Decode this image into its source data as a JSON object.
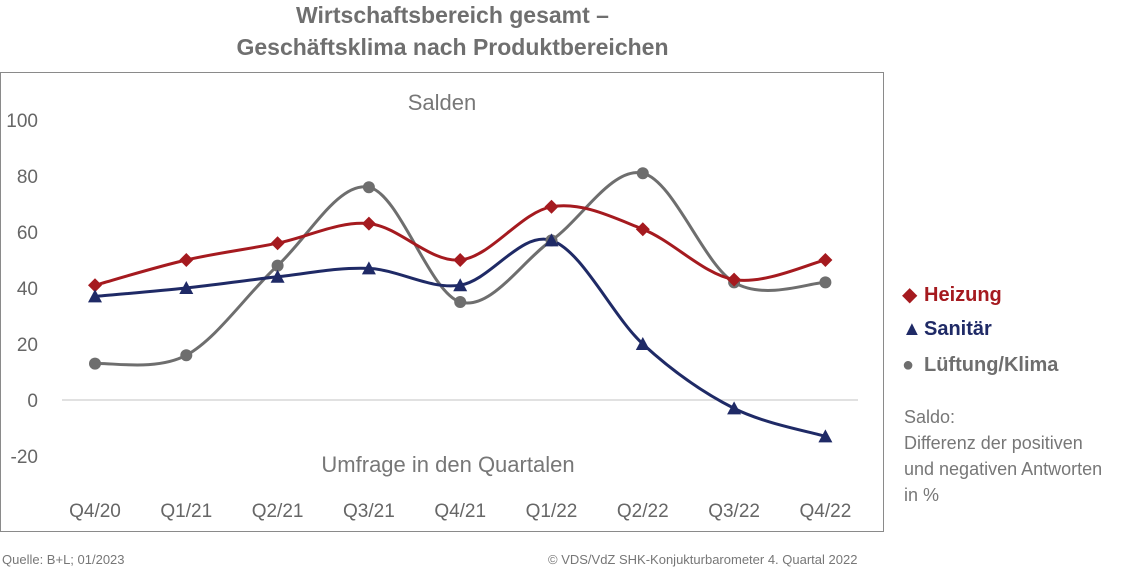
{
  "title_line1": "Wirtschaftsbereich gesamt –",
  "title_line2": "Geschäftsklima nach Produktbereichen",
  "chart_data": {
    "type": "line",
    "title": "Wirtschaftsbereich gesamt – Geschäftsklima nach Produktbereichen",
    "ylabel": "Salden",
    "xlabel": "Umfrage in den Quartalen",
    "categories": [
      "Q4/20",
      "Q1/21",
      "Q2/21",
      "Q3/21",
      "Q4/21",
      "Q1/22",
      "Q2/22",
      "Q3/22",
      "Q4/22"
    ],
    "ylim": [
      -20,
      100
    ],
    "yticks": [
      "100",
      "80",
      "60",
      "40",
      "20",
      "0",
      "-20"
    ],
    "grid": false,
    "legend_position": "right",
    "series": [
      {
        "name": "Heizung",
        "color": "#a51a1f",
        "marker": "diamond",
        "values": [
          41,
          50,
          56,
          63,
          50,
          69,
          61,
          43,
          50
        ]
      },
      {
        "name": "Sanitär",
        "color": "#1f2a66",
        "marker": "triangle",
        "values": [
          37,
          40,
          44,
          47,
          41,
          57,
          20,
          -3,
          -13
        ]
      },
      {
        "name": "Lüftung/Klima",
        "color": "#6e6e6e",
        "marker": "circle",
        "values": [
          13,
          16,
          48,
          76,
          35,
          57,
          81,
          42,
          42
        ]
      }
    ]
  },
  "legend": [
    {
      "symbol": "◆",
      "label": "Heizung",
      "color": "#a51a1f"
    },
    {
      "symbol": "▲",
      "label": "Sanitär",
      "color": "#1f2a66"
    },
    {
      "symbol": "●",
      "label": "Lüftung/Klima",
      "color": "#6e6e6e"
    }
  ],
  "note_lines": [
    "Saldo:",
    "Differenz der positiven",
    "und negativen Antworten",
    "in %"
  ],
  "footer_left": "Quelle: B+L; 01/2023",
  "footer_right": "© VDS/VdZ SHK-Konjukturbarometer 4. Quartal 2022"
}
